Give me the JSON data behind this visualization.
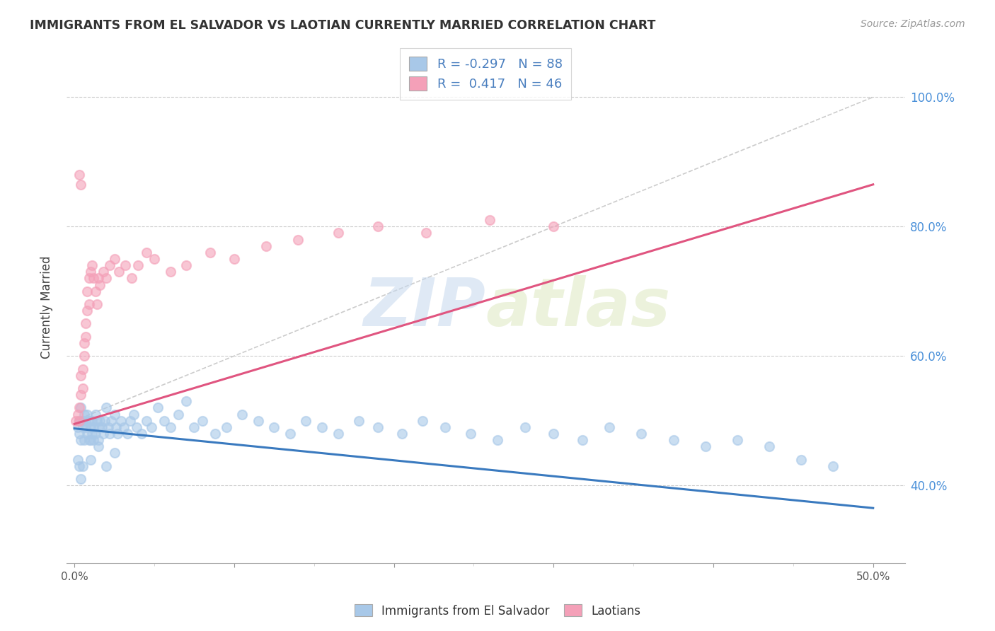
{
  "title": "IMMIGRANTS FROM EL SALVADOR VS LAOTIAN CURRENTLY MARRIED CORRELATION CHART",
  "source": "Source: ZipAtlas.com",
  "ylabel": "Currently Married",
  "blue_color": "#a8c8e8",
  "pink_color": "#f4a0b8",
  "blue_line_color": "#3a7abf",
  "pink_line_color": "#e05580",
  "diag_line_color": "#cccccc",
  "watermark_zip": "ZIP",
  "watermark_atlas": "atlas",
  "legend_R_blue": "-0.297",
  "legend_N_blue": "88",
  "legend_R_pink": "0.417",
  "legend_N_pink": "46",
  "xlim": [
    -0.005,
    0.52
  ],
  "ylim": [
    0.28,
    1.07
  ],
  "x_ticks": [
    0.0,
    0.1,
    0.2,
    0.3,
    0.4,
    0.5
  ],
  "y_ticks": [
    0.4,
    0.6,
    0.8,
    1.0
  ],
  "y_tick_labels": [
    "40.0%",
    "60.0%",
    "80.0%",
    "100.0%"
  ],
  "blue_line_x": [
    0.0,
    0.5
  ],
  "blue_line_y": [
    0.488,
    0.365
  ],
  "pink_line_x": [
    0.0,
    0.5
  ],
  "pink_line_y": [
    0.495,
    0.865
  ],
  "diag_line_x": [
    0.0,
    0.5
  ],
  "diag_line_y": [
    0.5,
    1.0
  ],
  "blue_x": [
    0.002,
    0.003,
    0.003,
    0.004,
    0.004,
    0.005,
    0.005,
    0.006,
    0.006,
    0.007,
    0.007,
    0.008,
    0.008,
    0.009,
    0.009,
    0.01,
    0.01,
    0.011,
    0.011,
    0.012,
    0.012,
    0.013,
    0.013,
    0.014,
    0.015,
    0.015,
    0.016,
    0.017,
    0.018,
    0.019,
    0.02,
    0.021,
    0.022,
    0.023,
    0.025,
    0.026,
    0.027,
    0.029,
    0.031,
    0.033,
    0.035,
    0.037,
    0.039,
    0.042,
    0.045,
    0.048,
    0.052,
    0.056,
    0.06,
    0.065,
    0.07,
    0.075,
    0.08,
    0.088,
    0.095,
    0.105,
    0.115,
    0.125,
    0.135,
    0.145,
    0.155,
    0.165,
    0.178,
    0.19,
    0.205,
    0.218,
    0.232,
    0.248,
    0.265,
    0.282,
    0.3,
    0.318,
    0.335,
    0.355,
    0.375,
    0.395,
    0.415,
    0.435,
    0.455,
    0.475,
    0.002,
    0.003,
    0.004,
    0.005,
    0.01,
    0.015,
    0.02,
    0.025
  ],
  "blue_y": [
    0.49,
    0.5,
    0.48,
    0.52,
    0.47,
    0.5,
    0.49,
    0.51,
    0.47,
    0.49,
    0.5,
    0.48,
    0.51,
    0.47,
    0.5,
    0.49,
    0.47,
    0.5,
    0.48,
    0.49,
    0.47,
    0.51,
    0.48,
    0.5,
    0.49,
    0.47,
    0.5,
    0.49,
    0.48,
    0.5,
    0.52,
    0.49,
    0.48,
    0.5,
    0.51,
    0.49,
    0.48,
    0.5,
    0.49,
    0.48,
    0.5,
    0.51,
    0.49,
    0.48,
    0.5,
    0.49,
    0.52,
    0.5,
    0.49,
    0.51,
    0.53,
    0.49,
    0.5,
    0.48,
    0.49,
    0.51,
    0.5,
    0.49,
    0.48,
    0.5,
    0.49,
    0.48,
    0.5,
    0.49,
    0.48,
    0.5,
    0.49,
    0.48,
    0.47,
    0.49,
    0.48,
    0.47,
    0.49,
    0.48,
    0.47,
    0.46,
    0.47,
    0.46,
    0.44,
    0.43,
    0.44,
    0.43,
    0.41,
    0.43,
    0.44,
    0.46,
    0.43,
    0.45
  ],
  "pink_x": [
    0.001,
    0.002,
    0.003,
    0.003,
    0.004,
    0.004,
    0.005,
    0.005,
    0.006,
    0.006,
    0.007,
    0.007,
    0.008,
    0.008,
    0.009,
    0.009,
    0.01,
    0.011,
    0.012,
    0.013,
    0.014,
    0.015,
    0.016,
    0.018,
    0.02,
    0.022,
    0.025,
    0.028,
    0.032,
    0.036,
    0.04,
    0.045,
    0.05,
    0.06,
    0.07,
    0.085,
    0.1,
    0.12,
    0.14,
    0.165,
    0.19,
    0.22,
    0.26,
    0.3,
    0.003,
    0.004
  ],
  "pink_y": [
    0.5,
    0.51,
    0.52,
    0.5,
    0.54,
    0.57,
    0.55,
    0.58,
    0.6,
    0.62,
    0.63,
    0.65,
    0.67,
    0.7,
    0.68,
    0.72,
    0.73,
    0.74,
    0.72,
    0.7,
    0.68,
    0.72,
    0.71,
    0.73,
    0.72,
    0.74,
    0.75,
    0.73,
    0.74,
    0.72,
    0.74,
    0.76,
    0.75,
    0.73,
    0.74,
    0.76,
    0.75,
    0.77,
    0.78,
    0.79,
    0.8,
    0.79,
    0.81,
    0.8,
    0.88,
    0.865
  ]
}
